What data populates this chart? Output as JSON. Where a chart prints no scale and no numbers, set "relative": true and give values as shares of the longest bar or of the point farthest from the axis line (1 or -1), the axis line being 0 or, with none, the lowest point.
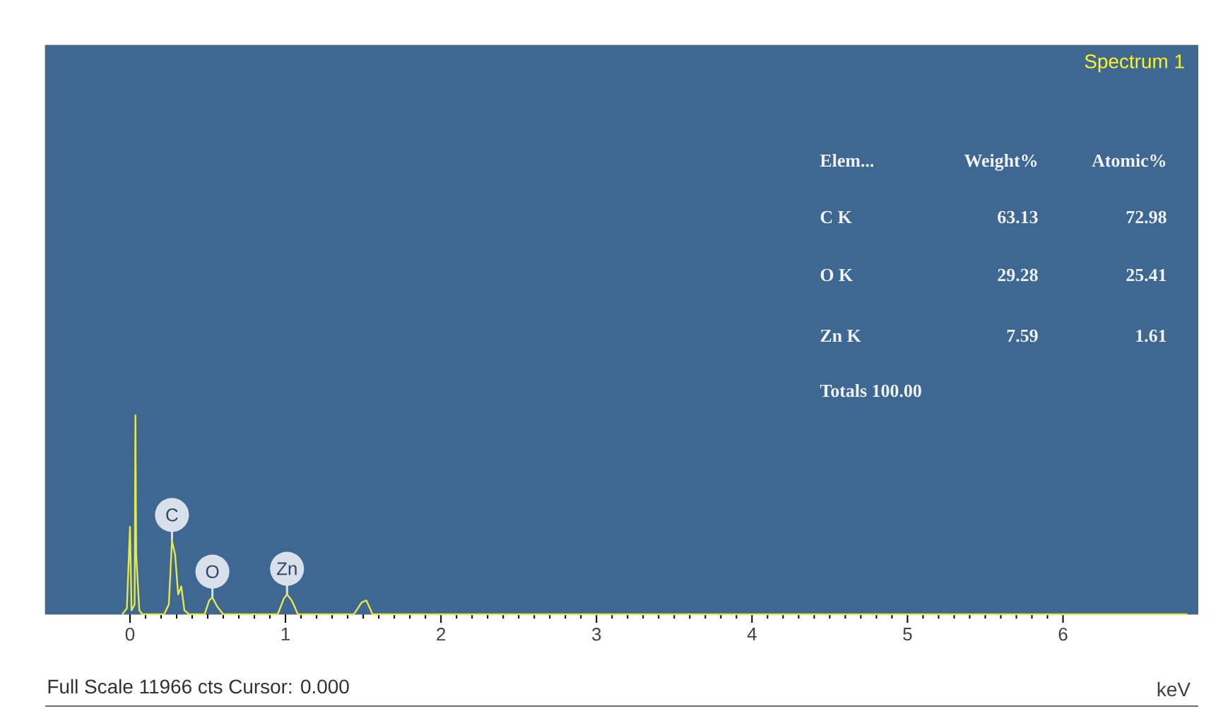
{
  "chart_data": {
    "type": "line",
    "title": "Spectrum 1",
    "xlabel": "keV",
    "relative": true,
    "color": "#e6e84c",
    "x": [
      -0.05,
      -0.02,
      0.0,
      0.01,
      0.03,
      0.035,
      0.04,
      0.06,
      0.08,
      0.22,
      0.25,
      0.27,
      0.29,
      0.31,
      0.33,
      0.35,
      0.38,
      0.48,
      0.51,
      0.53,
      0.56,
      0.6,
      0.95,
      0.99,
      1.01,
      1.04,
      1.08,
      1.44,
      1.49,
      1.52,
      1.56,
      6.8
    ],
    "values": [
      0,
      0.03,
      0.44,
      0.02,
      0.05,
      1.0,
      0.3,
      0.02,
      0,
      0,
      0.05,
      0.37,
      0.3,
      0.1,
      0.14,
      0.02,
      0,
      0,
      0.07,
      0.085,
      0.04,
      0,
      0,
      0.08,
      0.1,
      0.07,
      0,
      0,
      0.06,
      0.07,
      0,
      0
    ],
    "xlim": [
      -0.545,
      6.87
    ],
    "xticks": [
      0,
      1,
      2,
      3,
      4,
      5,
      6
    ],
    "grid": false,
    "annotations": [
      {
        "text": "C",
        "x": 0.27,
        "y": 0.37
      },
      {
        "text": "O",
        "x": 0.53,
        "y": 0.085
      },
      {
        "text": "Zn",
        "x": 1.01,
        "y": 0.1
      },
      "Elem...",
      "Weight%",
      "Atomic%",
      "C K",
      "63.13",
      "72.98",
      "O K",
      "29.28",
      "25.41",
      "Zn K",
      "7.59",
      "1.61",
      "Totals 100.00",
      "Full Scale 11966 cts Cursor: 0.000"
    ]
  }
}
